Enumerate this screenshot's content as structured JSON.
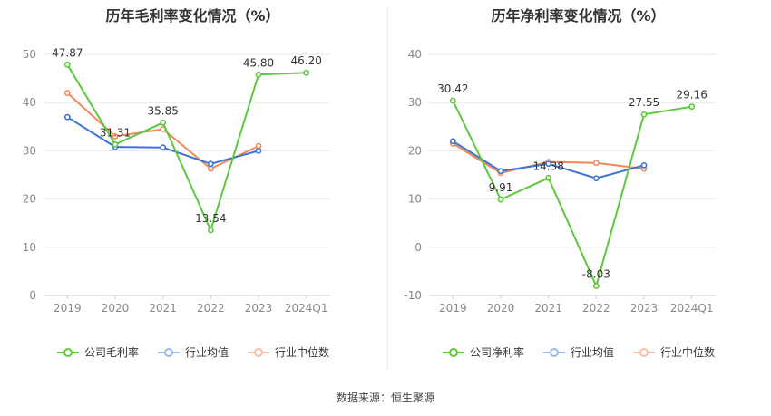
{
  "chart_data": [
    {
      "type": "line",
      "title": "历年毛利率变化情况（%）",
      "categories": [
        "2019",
        "2020",
        "2021",
        "2022",
        "2023",
        "2024Q1"
      ],
      "ylim": [
        0,
        50
      ],
      "yticks": [
        0,
        10,
        20,
        30,
        40,
        50
      ],
      "grid": true,
      "legend_position": "bottom",
      "series": [
        {
          "name": "公司毛利率",
          "color": "#5cc83d",
          "values": [
            47.87,
            31.31,
            35.85,
            13.54,
            45.8,
            46.2
          ],
          "labels": [
            "47.87",
            "31.31",
            "35.85",
            "13.54",
            "45.80",
            "46.20"
          ]
        },
        {
          "name": "行业均值",
          "color": "#3c74d3",
          "values": [
            37.0,
            30.8,
            30.7,
            27.3,
            30.0,
            null
          ]
        },
        {
          "name": "行业中位数",
          "color": "#f0895a",
          "values": [
            42.0,
            33.0,
            34.5,
            26.3,
            31.0,
            null
          ]
        }
      ]
    },
    {
      "type": "line",
      "title": "历年净利率变化情况（%）",
      "categories": [
        "2019",
        "2020",
        "2021",
        "2022",
        "2023",
        "2024Q1"
      ],
      "ylim": [
        -10,
        40
      ],
      "yticks": [
        -10,
        0,
        10,
        20,
        30,
        40
      ],
      "grid": true,
      "legend_position": "bottom",
      "series": [
        {
          "name": "公司净利率",
          "color": "#5cc83d",
          "values": [
            30.42,
            9.91,
            14.38,
            -8.03,
            27.55,
            29.16
          ],
          "labels": [
            "30.42",
            "9.91",
            "14.38",
            "-8.03",
            "27.55",
            "29.16"
          ]
        },
        {
          "name": "行业均值",
          "color": "#3c74d3",
          "values": [
            22.0,
            15.8,
            17.3,
            14.3,
            17.0,
            null
          ]
        },
        {
          "name": "行业中位数",
          "color": "#f0895a",
          "values": [
            21.5,
            15.4,
            17.7,
            17.5,
            16.3,
            null
          ]
        }
      ]
    }
  ],
  "footer": {
    "source": "数据来源：恒生聚源"
  }
}
